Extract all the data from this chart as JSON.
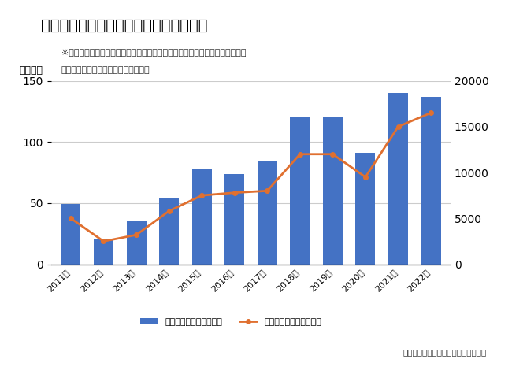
{
  "title": "香酸柑橘の輸出量と輸出額の年次グラフ",
  "subtitle_line1": "※香酸柑橘：果汁の酸味や果皮の香りを楽しむ柑橘のことをいい、ゆずを始め",
  "subtitle_line2": "すだち、かぼす、レモンなどを指す。",
  "years": [
    "2011年",
    "2012年",
    "2013年",
    "2014年",
    "2015年",
    "2016年",
    "2017年",
    "2018年",
    "2019年",
    "2020年",
    "2021年",
    "2022年"
  ],
  "volume": [
    49,
    21,
    35,
    54,
    78,
    74,
    84,
    120,
    121,
    91,
    140,
    137
  ],
  "value": [
    5000,
    2500,
    3200,
    5800,
    7500,
    7800,
    8000,
    12000,
    12000,
    9500,
    15000,
    16500
  ],
  "bar_color": "#4472C4",
  "line_color": "#E07030",
  "left_ylabel": "（トン）",
  "left_ylim": [
    0,
    150
  ],
  "left_yticks": [
    0,
    50,
    100,
    150
  ],
  "right_ylim": [
    0,
    20000
  ],
  "right_yticks": [
    0,
    5000,
    10000,
    15000,
    20000
  ],
  "legend_vol": "香酸柑橘輸出量（トン）",
  "legend_val": "香酸柑橘輸出額（万円）",
  "source": "「果物情報サイト果物ナビ」より作成",
  "bg_color": "#ffffff",
  "grid_color": "#cccccc"
}
